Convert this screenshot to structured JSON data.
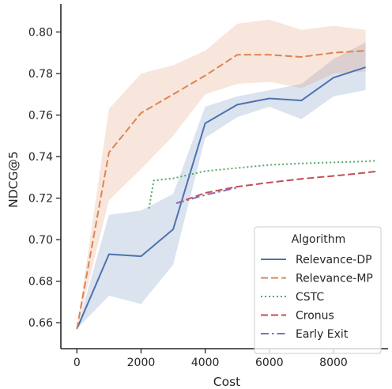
{
  "chart_data": {
    "type": "line",
    "xlabel": "Cost",
    "ylabel": "NDCG@5",
    "xlim": [
      -500,
      9700
    ],
    "ylim": [
      0.6475,
      0.8135
    ],
    "xticks": [
      0,
      2000,
      4000,
      6000,
      8000
    ],
    "xtick_labels": [
      "0",
      "2000",
      "4000",
      "6000",
      "8000"
    ],
    "yticks": [
      0.66,
      0.68,
      0.7,
      0.72,
      0.74,
      0.76,
      0.78,
      0.8
    ],
    "ytick_labels": [
      "0.66",
      "0.68",
      "0.70",
      "0.72",
      "0.74",
      "0.76",
      "0.78",
      "0.80"
    ],
    "grid": false,
    "legend": {
      "title": "Algorithm",
      "position": "lower-right"
    },
    "series": [
      {
        "name": "Relevance-DP",
        "color": "#4c72b0",
        "style": "solid",
        "x": [
          0,
          1000,
          2000,
          3000,
          4000,
          5000,
          6000,
          7000,
          8000,
          9000
        ],
        "y": [
          0.657,
          0.693,
          0.692,
          0.705,
          0.756,
          0.765,
          0.768,
          0.767,
          0.778,
          0.783
        ],
        "band_lower": [
          0.657,
          0.673,
          0.669,
          0.688,
          0.749,
          0.759,
          0.764,
          0.758,
          0.769,
          0.772
        ],
        "band_upper": [
          0.657,
          0.712,
          0.714,
          0.722,
          0.764,
          0.769,
          0.772,
          0.775,
          0.787,
          0.795
        ]
      },
      {
        "name": "Relevance-MP",
        "color": "#dd8452",
        "style": "dashed",
        "x": [
          0,
          1000,
          2000,
          3000,
          4000,
          5000,
          6000,
          7000,
          8000,
          9000
        ],
        "y": [
          0.657,
          0.742,
          0.761,
          0.77,
          0.779,
          0.789,
          0.789,
          0.788,
          0.79,
          0.791
        ],
        "band_lower": [
          0.657,
          0.719,
          0.734,
          0.75,
          0.77,
          0.775,
          0.776,
          0.773,
          0.78,
          0.781
        ],
        "band_upper": [
          0.657,
          0.763,
          0.78,
          0.784,
          0.791,
          0.804,
          0.806,
          0.801,
          0.803,
          0.801
        ]
      },
      {
        "name": "CSTC",
        "color": "#55a868",
        "style": "dotted",
        "x": [
          2250,
          2300,
          2400,
          3000,
          4000,
          5000,
          6000,
          7000,
          8000,
          9000,
          9300
        ],
        "y": [
          0.715,
          0.72,
          0.7285,
          0.7295,
          0.733,
          0.7345,
          0.736,
          0.7367,
          0.7372,
          0.7377,
          0.738
        ]
      },
      {
        "name": "Cronus",
        "color": "#c44e52",
        "style": "dashed",
        "x": [
          3100,
          4000,
          5000,
          6000,
          7000,
          8000,
          9000,
          9400
        ],
        "y": [
          0.7175,
          0.7225,
          0.7255,
          0.7275,
          0.7293,
          0.7307,
          0.7322,
          0.733
        ]
      },
      {
        "name": "Early Exit",
        "color": "#8172b3",
        "style": "dashdot",
        "x": [
          3100,
          4000,
          5000
        ],
        "y": [
          0.7175,
          0.7215,
          0.725
        ]
      }
    ]
  }
}
